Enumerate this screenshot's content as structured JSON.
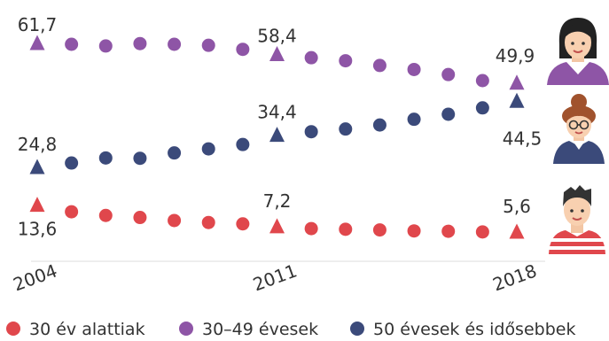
{
  "chart_data": {
    "type": "scatter",
    "x": [
      2004,
      2005,
      2006,
      2007,
      2008,
      2009,
      2010,
      2011,
      2012,
      2013,
      2014,
      2015,
      2016,
      2017,
      2018
    ],
    "xticks": [
      "2004",
      "2011",
      "2018"
    ],
    "triangle_years": [
      2004,
      2011,
      2018
    ],
    "ylim": [
      0,
      70
    ],
    "grid": false,
    "legend_position": "bottom",
    "series": [
      {
        "name": "30 év alattiak",
        "color": "#e0474c",
        "values": [
          13.6,
          11.9,
          10.8,
          10.2,
          9.3,
          8.7,
          8.3,
          7.2,
          6.9,
          6.7,
          6.5,
          6.2,
          6.1,
          5.9,
          5.6
        ],
        "labels": [
          {
            "year": 2004,
            "text": "13,6"
          },
          {
            "year": 2011,
            "text": "7,2"
          },
          {
            "year": 2018,
            "text": "5,6"
          }
        ]
      },
      {
        "name": "30–49 évesek",
        "color": "#8e55a6",
        "values": [
          61.7,
          61.7,
          61.2,
          61.9,
          61.7,
          61.4,
          60.2,
          58.4,
          57.7,
          56.8,
          55.4,
          54.2,
          52.7,
          50.9,
          49.9
        ],
        "labels": [
          {
            "year": 2004,
            "text": "61,7"
          },
          {
            "year": 2011,
            "text": "58,4"
          },
          {
            "year": 2018,
            "text": "49,9"
          }
        ]
      },
      {
        "name": "50 évesek és idősebbek",
        "color": "#3b4a7a",
        "values": [
          24.8,
          26.4,
          27.9,
          27.8,
          29.4,
          30.6,
          31.9,
          34.4,
          35.7,
          36.5,
          37.7,
          39.4,
          40.9,
          42.8,
          44.5
        ],
        "labels": [
          {
            "year": 2004,
            "text": "24,8"
          },
          {
            "year": 2011,
            "text": "34,4"
          },
          {
            "year": 2018,
            "text": "44,5"
          }
        ]
      }
    ]
  },
  "icons": [
    "woman-icon",
    "woman-glasses-icon",
    "man-icon"
  ]
}
